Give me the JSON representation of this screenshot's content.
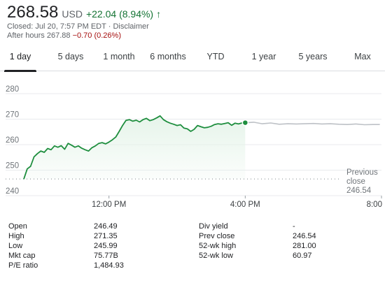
{
  "quote": {
    "price": "268.58",
    "currency": "USD",
    "change": "+22.04 (8.94%)",
    "direction_icon": "arrow-up-icon",
    "closed_label": "Closed: Jul 20, 7:57 PM EDT",
    "separator": " · ",
    "disclaimer": "Disclaimer",
    "after_hours_label": "After hours 267.88",
    "after_hours_change": "−0.70 (0.26%)",
    "up_color": "#137333",
    "down_color": "#a50e0e"
  },
  "tabs": [
    {
      "label": "1 day",
      "active": true
    },
    {
      "label": "5 days",
      "active": false
    },
    {
      "label": "1 month",
      "active": false
    },
    {
      "label": "6 months",
      "active": false
    },
    {
      "label": "YTD",
      "active": false
    },
    {
      "label": "1 year",
      "active": false
    },
    {
      "label": "5 years",
      "active": false
    },
    {
      "label": "Max",
      "active": false
    }
  ],
  "chart_data": {
    "type": "area",
    "y_ticks": [
      "280",
      "270",
      "260",
      "250",
      "240"
    ],
    "x_ticks": [
      "12:00 PM",
      "4:00 PM",
      "8:00 PM"
    ],
    "ylim": [
      240,
      280
    ],
    "xlim": [
      9.5,
      20
    ],
    "grid": true,
    "previous_close": {
      "label_line1": "Previous",
      "label_line2": "close",
      "value": "246.54",
      "y": 246.54
    },
    "colors": {
      "session": "#1e8e3e",
      "after_hours": "#bdc1c6",
      "fill": "#e6f4ea",
      "grid": "#e8eaed"
    },
    "series": [
      {
        "segment": "regular",
        "x": [
          9.5,
          9.6,
          9.7,
          9.8,
          9.9,
          10.0,
          10.1,
          10.2,
          10.3,
          10.4,
          10.5,
          10.6,
          10.7,
          10.8,
          10.9,
          11.0,
          11.1,
          11.2,
          11.3,
          11.4,
          11.5,
          11.6,
          11.7,
          11.8,
          11.9,
          12.0,
          12.1,
          12.2,
          12.3,
          12.4,
          12.5,
          12.6,
          12.7,
          12.8,
          12.9,
          13.0,
          13.1,
          13.2,
          13.3,
          13.4,
          13.5,
          13.6,
          13.7,
          13.8,
          13.9,
          14.0,
          14.1,
          14.2,
          14.3,
          14.4,
          14.5,
          14.6,
          14.7,
          14.8,
          14.9,
          15.0,
          15.1,
          15.2,
          15.3,
          15.4,
          15.5,
          15.6,
          15.7,
          15.8,
          15.9,
          16.0
        ],
        "y": [
          246.5,
          250.5,
          251.5,
          255.2,
          256.5,
          257.5,
          257.0,
          258.5,
          258.0,
          259.5,
          259.0,
          259.6,
          258.2,
          260.5,
          259.8,
          259.0,
          259.5,
          258.6,
          258.0,
          257.5,
          258.8,
          259.5,
          260.5,
          260.8,
          260.3,
          261.0,
          261.9,
          263.0,
          265.2,
          267.5,
          269.5,
          269.8,
          269.2,
          269.6,
          268.9,
          269.8,
          270.3,
          269.4,
          269.8,
          270.5,
          271.3,
          269.8,
          269.0,
          268.4,
          268.0,
          267.5,
          267.8,
          266.5,
          266.2,
          265.2,
          266.0,
          267.5,
          267.0,
          266.6,
          266.8,
          267.2,
          267.9,
          268.2,
          268.0,
          268.3,
          268.6,
          267.6,
          268.4,
          268.1,
          268.5,
          268.6
        ]
      },
      {
        "segment": "after_hours",
        "x": [
          16.0,
          16.25,
          16.5,
          16.75,
          17.0,
          17.25,
          17.5,
          17.75,
          18.0,
          18.25,
          18.5,
          18.75,
          19.0,
          19.25,
          19.5,
          19.75,
          19.95
        ],
        "y": [
          268.58,
          268.8,
          268.2,
          268.5,
          268.0,
          268.2,
          268.1,
          268.2,
          268.3,
          268.1,
          268.2,
          268.0,
          267.9,
          268.1,
          267.8,
          267.9,
          267.9
        ]
      }
    ]
  },
  "stats": {
    "left": [
      {
        "label": "Open",
        "value": "246.49"
      },
      {
        "label": "High",
        "value": "271.35"
      },
      {
        "label": "Low",
        "value": "245.99"
      },
      {
        "label": "Mkt cap",
        "value": "75.77B"
      },
      {
        "label": "P/E ratio",
        "value": "1,484.93"
      }
    ],
    "right": [
      {
        "label": "Div yield",
        "value": "-"
      },
      {
        "label": "Prev close",
        "value": "246.54"
      },
      {
        "label": "52-wk high",
        "value": "281.00"
      },
      {
        "label": "52-wk low",
        "value": "60.97"
      }
    ]
  }
}
